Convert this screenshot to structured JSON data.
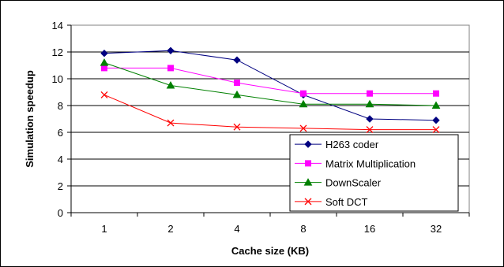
{
  "chart_data": {
    "type": "line",
    "title": "",
    "xlabel": "Cache size (KB)",
    "ylabel": "Simulation speedup",
    "categories": [
      "1",
      "2",
      "4",
      "8",
      "16",
      "32"
    ],
    "ylim": [
      0,
      14
    ],
    "yticks": [
      0,
      2,
      4,
      6,
      8,
      10,
      12,
      14
    ],
    "grid": "horizontal",
    "legend_position": "bottom-right",
    "series": [
      {
        "name": "H263 coder",
        "color": "#000080",
        "marker": "diamond",
        "values": [
          11.9,
          12.1,
          11.4,
          8.8,
          7.0,
          6.9
        ]
      },
      {
        "name": "Matrix Multiplication",
        "color": "#ff00ff",
        "marker": "square",
        "values": [
          10.8,
          10.8,
          9.7,
          8.9,
          8.9,
          8.9
        ]
      },
      {
        "name": "DownScaler",
        "color": "#008000",
        "marker": "triangle",
        "values": [
          11.2,
          9.5,
          8.8,
          8.1,
          8.1,
          8.0
        ]
      },
      {
        "name": "Soft DCT",
        "color": "#ff0000",
        "marker": "x",
        "values": [
          8.8,
          6.7,
          6.4,
          6.3,
          6.2,
          6.2
        ]
      }
    ]
  }
}
